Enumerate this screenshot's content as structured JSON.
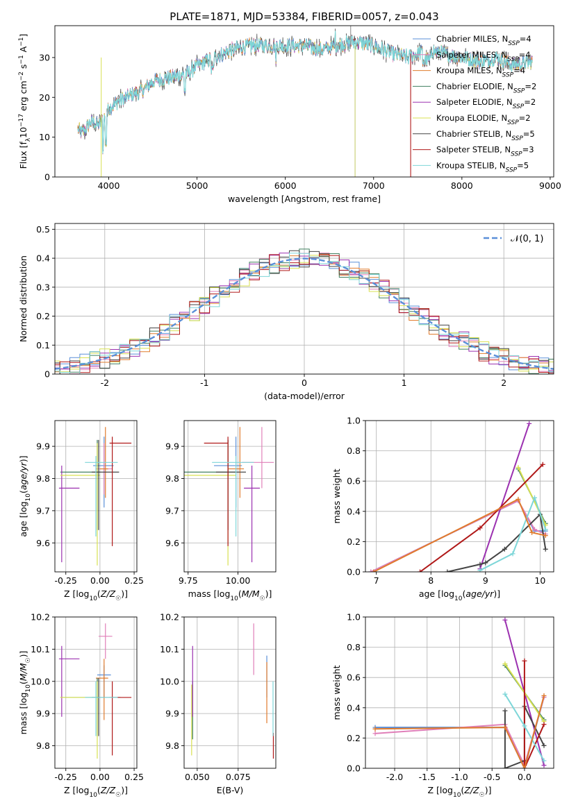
{
  "chart_data": [
    {
      "type": "line",
      "title": "PLATE=1871, MJD=53384, FIBERID=0057, z=0.043",
      "xlabel": "wavelength [Angstrom, rest frame]",
      "ylabel": "Flux [f_λ10^-17 erg cm^-2 s^-1 A^-1]",
      "xlim": [
        3390,
        9040
      ],
      "ylim": [
        0,
        38
      ],
      "xticks": [
        4000,
        5000,
        6000,
        7000,
        8000,
        9000
      ],
      "yticks": [
        0,
        10,
        20,
        30
      ],
      "grid": false,
      "legend_position": "top-right",
      "series": [
        {
          "name": "Chabrier MILES, N_SSP=4",
          "color": "#5a8fd8"
        },
        {
          "name": "Salpeter MILES, N_SSP=4",
          "color": "#e07fb8"
        },
        {
          "name": "Kroupa MILES, N_SSP=4",
          "color": "#e07b2c"
        },
        {
          "name": "Chabrier ELODIE, N_SSP=2",
          "color": "#3f7f5f"
        },
        {
          "name": "Salpeter ELODIE, N_SSP=2",
          "color": "#9b30b0"
        },
        {
          "name": "Kroupa ELODIE, N_SSP=2",
          "color": "#d8e050"
        },
        {
          "name": "Chabrier STELIB, N_SSP=5",
          "color": "#444444"
        },
        {
          "name": "Salpeter STELIB, N_SSP=3",
          "color": "#b01818"
        },
        {
          "name": "Kroupa STELIB, N_SSP=5",
          "color": "#7dd6d8"
        }
      ],
      "spectrum_anchors": {
        "wavelength": [
          3650,
          3700,
          3800,
          3900,
          4000,
          4100,
          4200,
          4300,
          4400,
          4500,
          4700,
          4900,
          5000,
          5200,
          5400,
          5600,
          5800,
          6000,
          6200,
          6400,
          6600,
          6800,
          7000,
          7200,
          7400,
          7600,
          7800,
          8000,
          8200,
          8400,
          8600,
          8800
        ],
        "flux": [
          12,
          11,
          14,
          13,
          17,
          19,
          20,
          21,
          22,
          24,
          25,
          26,
          28,
          30,
          32,
          33,
          33,
          33,
          33,
          32,
          33,
          34,
          33,
          31,
          30,
          32,
          31,
          30,
          29,
          30,
          28,
          29
        ]
      }
    },
    {
      "type": "line",
      "xlabel": "(data-model)/error",
      "ylabel": "Normed distribution",
      "xlim": [
        -2.5,
        2.5
      ],
      "ylim": [
        0,
        0.52
      ],
      "xticks": [
        -2,
        -1,
        0,
        1,
        2
      ],
      "yticks": [
        0.0,
        0.1,
        0.2,
        0.3,
        0.4,
        0.5
      ],
      "grid": true,
      "legend_position": "top-right",
      "legend": [
        "𝒩(0, 1)"
      ],
      "reference_curve": {
        "name": "𝒩(0, 1)",
        "color": "#5a8fd8",
        "style": "dashed"
      },
      "histogram_bin_width": 0.1
    },
    {
      "type": "scatter",
      "xlabel": "Z [log10(Z/Z☉)]",
      "ylabel": "age  [log10(age/yr)]",
      "xlim": [
        -0.33,
        0.27
      ],
      "ylim": [
        9.51,
        9.98
      ],
      "xticks": [
        "-0.25",
        "0.00",
        "0.25"
      ],
      "yticks": [
        "9.6",
        "9.7",
        "9.8",
        "9.9"
      ],
      "points": [
        {
          "x": 0.03,
          "y": 9.84,
          "xerr": [
            0.08,
            0.07
          ],
          "yerr": [
            0.13,
            0.09
          ],
          "color": "#5a8fd8"
        },
        {
          "x": 0.03,
          "y": 9.83,
          "xerr": [
            0.06,
            0.06
          ],
          "yerr": [
            0.08,
            0.08
          ],
          "color": "#e07fb8"
        },
        {
          "x": 0.04,
          "y": 9.83,
          "xerr": [
            0.04,
            0.02
          ],
          "yerr": [
            0.09,
            0.13
          ],
          "color": "#e07b2c"
        },
        {
          "x": -0.02,
          "y": 9.82,
          "xerr": [
            0.27,
            0.02
          ],
          "yerr": [
            0.18,
            0.1
          ],
          "color": "#3f7f5f"
        },
        {
          "x": -0.28,
          "y": 9.77,
          "xerr": [
            0.02,
            0.13
          ],
          "yerr": [
            0.23,
            0.07
          ],
          "color": "#9b30b0"
        },
        {
          "x": -0.02,
          "y": 9.81,
          "xerr": [
            0.27,
            0.02
          ],
          "yerr": [
            0.28,
            0.1
          ],
          "color": "#d8e050"
        },
        {
          "x": -0.01,
          "y": 9.82,
          "xerr": [
            0.05,
            0.15
          ],
          "yerr": [
            0.18,
            0.1
          ],
          "color": "#444444"
        },
        {
          "x": 0.09,
          "y": 9.91,
          "xerr": [
            0.02,
            0.14
          ],
          "yerr": [
            0.32,
            0.02
          ],
          "color": "#b01818"
        },
        {
          "x": -0.03,
          "y": 9.85,
          "xerr": [
            0.08,
            0.16
          ],
          "yerr": [
            0.23,
            0.02
          ],
          "color": "#7dd6d8"
        }
      ]
    },
    {
      "type": "scatter",
      "xlabel": "mass [log10(M/M☉)]",
      "ylabel": "",
      "xlim": [
        9.73,
        10.19
      ],
      "ylim": [
        9.51,
        9.98
      ],
      "xticks": [
        "9.75",
        "10.00"
      ],
      "yticks": [
        "9.6",
        "9.7",
        "9.8",
        "9.9"
      ],
      "points": [
        {
          "x": 9.99,
          "y": 9.84,
          "xerr": [
            0.11,
            0.03
          ],
          "yerr": [
            0.13,
            0.09
          ],
          "color": "#5a8fd8"
        },
        {
          "x": 10.12,
          "y": 9.85,
          "xerr": [
            0.1,
            0.06
          ],
          "yerr": [
            0.08,
            0.11
          ],
          "color": "#e07fb8"
        },
        {
          "x": 10.01,
          "y": 9.83,
          "xerr": [
            0.06,
            0.02
          ],
          "yerr": [
            0.09,
            0.13
          ],
          "color": "#e07b2c"
        },
        {
          "x": 9.95,
          "y": 9.82,
          "xerr": [
            0.22,
            0.04
          ],
          "yerr": [
            0.18,
            0.1
          ],
          "color": "#3f7f5f"
        },
        {
          "x": 10.07,
          "y": 9.77,
          "xerr": [
            0.04,
            0.04
          ],
          "yerr": [
            0.23,
            0.07
          ],
          "color": "#9b30b0"
        },
        {
          "x": 9.95,
          "y": 9.81,
          "xerr": [
            0.22,
            0.04
          ],
          "yerr": [
            0.28,
            0.1
          ],
          "color": "#d8e050"
        },
        {
          "x": 9.95,
          "y": 9.82,
          "xerr": [
            0.06,
            0.09
          ],
          "yerr": [
            0.18,
            0.1
          ],
          "color": "#444444"
        },
        {
          "x": 9.95,
          "y": 9.91,
          "xerr": [
            0.12,
            0.0
          ],
          "yerr": [
            0.32,
            0.02
          ],
          "color": "#b01818"
        },
        {
          "x": 9.99,
          "y": 9.85,
          "xerr": [
            0.12,
            0.09
          ],
          "yerr": [
            0.23,
            0.02
          ],
          "color": "#7dd6d8"
        }
      ]
    },
    {
      "type": "line",
      "xlabel": "age  [log10(age/yr)]",
      "ylabel": "mass weight",
      "xlim": [
        6.8,
        10.25
      ],
      "ylim": [
        0,
        1
      ],
      "xticks": [
        7,
        8,
        9,
        10
      ],
      "yticks": [
        "0.0",
        "0.2",
        "0.4",
        "0.6",
        "0.8",
        "1.0"
      ],
      "grid": true,
      "series": [
        {
          "color": "#5a8fd8",
          "x": [
            6.9,
            9.6,
            9.9,
            10.1
          ],
          "y": [
            0.0,
            0.47,
            0.27,
            0.27
          ]
        },
        {
          "color": "#e07fb8",
          "x": [
            6.9,
            9.6,
            9.9,
            10.1
          ],
          "y": [
            0.0,
            0.47,
            0.28,
            0.25
          ]
        },
        {
          "color": "#3f7f5f",
          "x": [
            9.6,
            10.1
          ],
          "y": [
            0.68,
            0.32
          ]
        },
        {
          "color": "#9b30b0",
          "x": [
            8.9,
            9.8
          ],
          "y": [
            0.02,
            0.98
          ]
        },
        {
          "color": "#d8e050",
          "x": [
            9.6,
            10.1
          ],
          "y": [
            0.69,
            0.31
          ]
        },
        {
          "color": "#444444",
          "x": [
            8.3,
            8.9,
            9.0,
            9.35,
            10.0,
            10.1
          ],
          "y": [
            0.0,
            0.05,
            0.06,
            0.15,
            0.38,
            0.15
          ]
        },
        {
          "color": "#b01818",
          "x": [
            7.8,
            8.9,
            10.05
          ],
          "y": [
            0.0,
            0.29,
            0.71
          ]
        },
        {
          "color": "#7dd6d8",
          "x": [
            8.9,
            9.5,
            9.9,
            10.1
          ],
          "y": [
            0.01,
            0.12,
            0.49,
            0.28
          ]
        },
        {
          "color": "#e07b2c",
          "x": [
            6.95,
            9.6,
            9.85,
            10.1
          ],
          "y": [
            0.0,
            0.48,
            0.26,
            0.24
          ]
        }
      ]
    },
    {
      "type": "scatter",
      "xlabel": "Z [log10(Z/Z☉)]",
      "ylabel": "mass [log10(M/M☉)]",
      "xlim": [
        -0.33,
        0.27
      ],
      "ylim": [
        9.73,
        10.2
      ],
      "xticks": [
        "-0.25",
        "0.00",
        "0.25"
      ],
      "yticks": [
        "9.8",
        "9.9",
        "10.0",
        "10.1",
        "10.2"
      ],
      "points": [
        {
          "x": 0.03,
          "y": 10.02,
          "xerr": [
            0.05,
            0.05
          ],
          "yerr": [
            0.07,
            0.03
          ],
          "color": "#5a8fd8"
        },
        {
          "x": 0.04,
          "y": 10.14,
          "xerr": [
            0.05,
            0.05
          ],
          "yerr": [
            0.07,
            0.04
          ],
          "color": "#e07fb8"
        },
        {
          "x": 0.03,
          "y": 10.01,
          "xerr": [
            0.06,
            0.03
          ],
          "yerr": [
            0.13,
            0.06
          ],
          "color": "#e07b2c"
        },
        {
          "x": -0.02,
          "y": 9.95,
          "xerr": [
            0.27,
            0.02
          ],
          "yerr": [
            0.12,
            0.06
          ],
          "color": "#3f7f5f"
        },
        {
          "x": -0.28,
          "y": 10.07,
          "xerr": [
            0.02,
            0.13
          ],
          "yerr": [
            0.18,
            0.04
          ],
          "color": "#9b30b0"
        },
        {
          "x": -0.02,
          "y": 9.95,
          "xerr": [
            0.27,
            0.02
          ],
          "yerr": [
            0.19,
            0.05
          ],
          "color": "#d8e050"
        },
        {
          "x": -0.01,
          "y": 9.95,
          "xerr": [
            0.05,
            0.16
          ],
          "yerr": [
            0.12,
            0.06
          ],
          "color": "#444444"
        },
        {
          "x": 0.09,
          "y": 9.95,
          "xerr": [
            0.02,
            0.14
          ],
          "yerr": [
            0.18,
            0.05
          ],
          "color": "#b01818"
        },
        {
          "x": -0.03,
          "y": 9.95,
          "xerr": [
            0.08,
            0.16
          ],
          "yerr": [
            0.12,
            0.05
          ],
          "color": "#7dd6d8"
        }
      ]
    },
    {
      "type": "scatter",
      "xlabel": "E(B-V)",
      "ylabel": "",
      "xlim": [
        0.042,
        0.098
      ],
      "ylim": [
        9.73,
        10.2
      ],
      "xticks": [
        "0.050",
        "0.075"
      ],
      "yticks": [
        "9.8",
        "9.9",
        "10.0",
        "10.1",
        "10.2"
      ],
      "points": [
        {
          "x": 0.0925,
          "y": 10.02,
          "yerr": [
            0.07,
            0.06
          ],
          "color": "#5a8fd8"
        },
        {
          "x": 0.0845,
          "y": 10.14,
          "yerr": [
            0.12,
            0.04
          ],
          "color": "#e07fb8"
        },
        {
          "x": 0.0925,
          "y": 10.0,
          "yerr": [
            0.13,
            0.06
          ],
          "color": "#e07b2c"
        },
        {
          "x": 0.0472,
          "y": 9.95,
          "yerr": [
            0.13,
            0.05
          ],
          "color": "#3f7f5f"
        },
        {
          "x": 0.0472,
          "y": 10.04,
          "yerr": [
            0.15,
            0.07
          ],
          "color": "#9b30b0"
        },
        {
          "x": 0.0466,
          "y": 9.91,
          "yerr": [
            0.14,
            0.08
          ],
          "color": "#d8e050"
        },
        {
          "x": 0.0965,
          "y": 9.8,
          "yerr": [
            0.04,
            0.04
          ],
          "color": "#b01818"
        },
        {
          "x": 0.0963,
          "y": 9.95,
          "yerr": [
            0.12,
            0.05
          ],
          "color": "#7dd6d8"
        }
      ]
    },
    {
      "type": "line",
      "xlabel": "Z [log10(Z/Z☉)]",
      "ylabel": "mass weight",
      "xlim": [
        -2.45,
        0.45
      ],
      "ylim": [
        0,
        1
      ],
      "xticks": [
        "-2.0",
        "-1.5",
        "-1.0",
        "-0.5",
        "0.0"
      ],
      "yticks": [
        "0.0",
        "0.2",
        "0.4",
        "0.6",
        "0.8",
        "1.0"
      ],
      "grid": true,
      "series": [
        {
          "color": "#5a8fd8",
          "x": [
            -2.3,
            -0.3,
            0.0,
            0.3
          ],
          "y": [
            0.27,
            0.27,
            0.0,
            0.47
          ]
        },
        {
          "color": "#e07fb8",
          "x": [
            -2.3,
            -0.3,
            0.0,
            0.3
          ],
          "y": [
            0.23,
            0.29,
            0.02,
            0.47
          ]
        },
        {
          "color": "#3f7f5f",
          "x": [
            -0.3,
            0.3
          ],
          "y": [
            0.68,
            0.32
          ]
        },
        {
          "color": "#9b30b0",
          "x": [
            -0.3,
            0.3
          ],
          "y": [
            0.98,
            0.02
          ]
        },
        {
          "color": "#d8e050",
          "x": [
            -0.3,
            0.3
          ],
          "y": [
            0.69,
            0.31
          ]
        },
        {
          "color": "#444444",
          "x": [
            -0.3,
            -0.3,
            0.0,
            0.0,
            0.3
          ],
          "y": [
            0.38,
            0.0,
            0.05,
            0.41,
            0.15
          ]
        },
        {
          "color": "#b01818",
          "x": [
            0.0,
            0.0,
            0.3
          ],
          "y": [
            0.71,
            0.0,
            0.29
          ]
        },
        {
          "color": "#7dd6d8",
          "x": [
            -0.3,
            0.0,
            0.3
          ],
          "y": [
            0.49,
            0.28,
            0.05
          ]
        },
        {
          "color": "#e07b2c",
          "x": [
            -2.3,
            -0.3,
            0.0,
            0.3
          ],
          "y": [
            0.26,
            0.27,
            0.0,
            0.48
          ]
        }
      ]
    }
  ]
}
